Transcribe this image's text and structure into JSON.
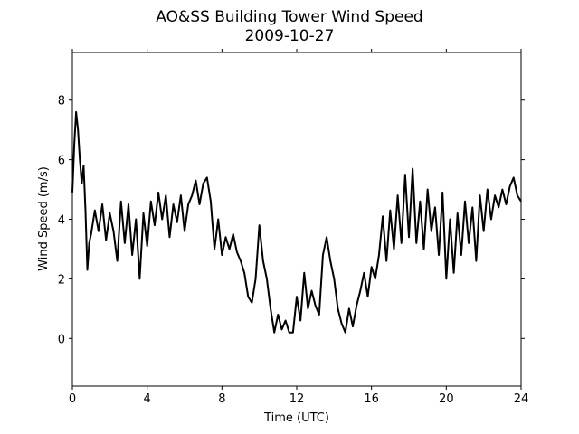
{
  "chart_data": {
    "type": "line",
    "title": "AO&SS Building Tower Wind Speed",
    "subtitle": "2009-10-27",
    "x_label": "Time (UTC)",
    "y_label": "Wind Speed (m/s)",
    "xlim": [
      0,
      24
    ],
    "xticks": [
      0,
      4,
      8,
      12,
      16,
      20,
      24
    ],
    "ylim": [
      -1.6,
      9.6
    ],
    "yticks": [
      0,
      2,
      4,
      6,
      8
    ],
    "grid": false,
    "series": [
      {
        "color": "#000000",
        "x": [
          0.0,
          0.1,
          0.2,
          0.3,
          0.4,
          0.5,
          0.6,
          0.7,
          0.8,
          0.9,
          1.0,
          1.2,
          1.4,
          1.6,
          1.8,
          2.0,
          2.2,
          2.4,
          2.6,
          2.8,
          3.0,
          3.2,
          3.4,
          3.6,
          3.8,
          4.0,
          4.2,
          4.4,
          4.6,
          4.8,
          5.0,
          5.2,
          5.4,
          5.6,
          5.8,
          6.0,
          6.2,
          6.4,
          6.6,
          6.8,
          7.0,
          7.2,
          7.4,
          7.6,
          7.8,
          8.0,
          8.2,
          8.4,
          8.6,
          8.8,
          9.0,
          9.2,
          9.4,
          9.6,
          9.8,
          10.0,
          10.2,
          10.4,
          10.6,
          10.8,
          11.0,
          11.2,
          11.4,
          11.6,
          11.8,
          12.0,
          12.2,
          12.4,
          12.6,
          12.8,
          13.0,
          13.2,
          13.4,
          13.6,
          13.8,
          14.0,
          14.2,
          14.4,
          14.6,
          14.8,
          15.0,
          15.2,
          15.4,
          15.6,
          15.8,
          16.0,
          16.2,
          16.4,
          16.6,
          16.8,
          17.0,
          17.2,
          17.4,
          17.6,
          17.8,
          18.0,
          18.2,
          18.4,
          18.6,
          18.8,
          19.0,
          19.2,
          19.4,
          19.6,
          19.8,
          20.0,
          20.2,
          20.4,
          20.6,
          20.8,
          21.0,
          21.2,
          21.4,
          21.6,
          21.8,
          22.0,
          22.2,
          22.4,
          22.6,
          22.8,
          23.0,
          23.2,
          23.4,
          23.6,
          23.8,
          24.0
        ],
        "values": [
          4.9,
          6.5,
          7.6,
          7.0,
          6.0,
          5.2,
          5.8,
          4.3,
          2.3,
          3.2,
          3.5,
          4.3,
          3.6,
          4.5,
          3.3,
          4.2,
          3.6,
          2.6,
          4.6,
          3.2,
          4.5,
          2.8,
          4.0,
          2.0,
          4.2,
          3.1,
          4.6,
          3.8,
          4.9,
          4.0,
          4.8,
          3.4,
          4.5,
          3.9,
          4.8,
          3.6,
          4.5,
          4.8,
          5.3,
          4.5,
          5.2,
          5.4,
          4.6,
          3.0,
          4.0,
          2.8,
          3.4,
          3.0,
          3.5,
          2.9,
          2.6,
          2.2,
          1.4,
          1.2,
          2.0,
          3.8,
          2.6,
          2.0,
          1.0,
          0.2,
          0.8,
          0.3,
          0.6,
          0.2,
          0.2,
          1.4,
          0.6,
          2.2,
          1.0,
          1.6,
          1.1,
          0.8,
          2.8,
          3.4,
          2.6,
          2.0,
          1.0,
          0.5,
          0.2,
          1.0,
          0.4,
          1.1,
          1.6,
          2.2,
          1.4,
          2.4,
          2.0,
          2.8,
          4.1,
          2.6,
          4.3,
          3.0,
          4.8,
          3.2,
          5.5,
          3.4,
          5.7,
          3.2,
          4.6,
          3.0,
          5.0,
          3.6,
          4.4,
          2.8,
          4.9,
          2.0,
          4.0,
          2.2,
          4.2,
          2.8,
          4.6,
          3.2,
          4.4,
          2.6,
          4.8,
          3.6,
          5.0,
          4.0,
          4.8,
          4.4,
          5.0,
          4.5,
          5.1,
          5.4,
          4.8,
          4.6
        ]
      }
    ]
  }
}
